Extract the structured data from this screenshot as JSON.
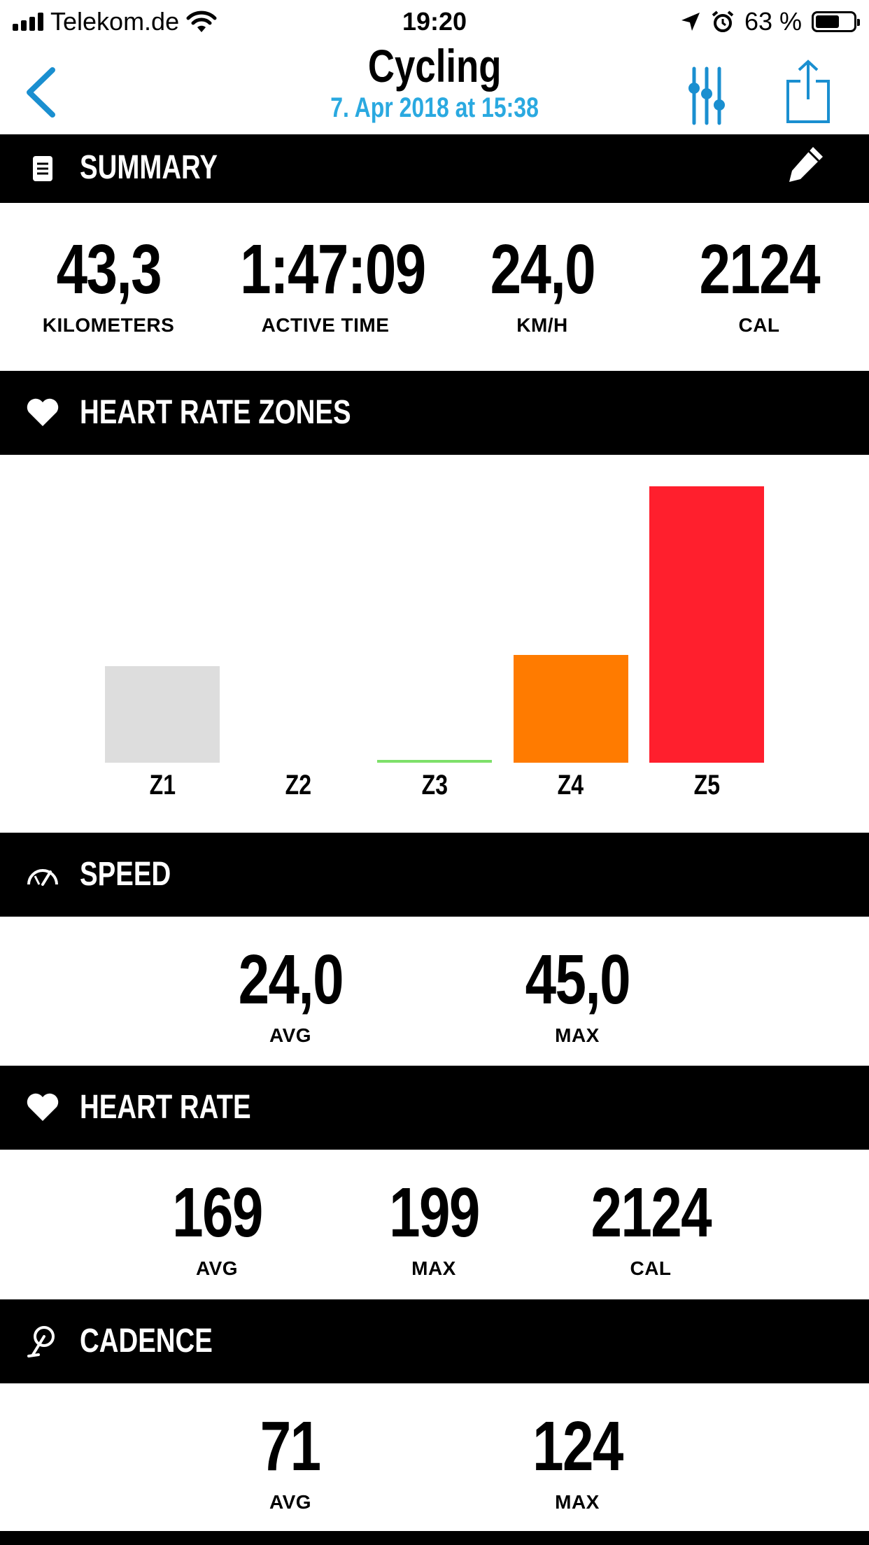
{
  "status_bar": {
    "carrier": "Telekom.de",
    "time": "19:20",
    "battery_percent": "63 %",
    "battery_level": 0.63
  },
  "nav": {
    "title": "Cycling",
    "subtitle": "7. Apr 2018 at 15:38"
  },
  "summary": {
    "title": "SUMMARY",
    "stats": [
      {
        "value": "43,3",
        "label": "KILOMETERS"
      },
      {
        "value": "1:47:09",
        "label": "ACTIVE TIME"
      },
      {
        "value": "24,0",
        "label": "KM/H"
      },
      {
        "value": "2124",
        "label": "CAL"
      }
    ]
  },
  "heart_rate_zones": {
    "title": "HEART RATE ZONES"
  },
  "chart_data": {
    "type": "bar",
    "categories": [
      "Z1",
      "Z2",
      "Z3",
      "Z4",
      "Z5"
    ],
    "values": [
      0.35,
      0,
      0.01,
      0.39,
      1.0
    ],
    "colors": [
      "#dddddd",
      "#cccccc",
      "#7ee06a",
      "#ff7b00",
      "#ff1f2d"
    ],
    "title": "",
    "xlabel": "",
    "ylabel": "",
    "ylim": [
      0,
      1
    ]
  },
  "speed": {
    "title": "SPEED",
    "stats": [
      {
        "value": "24,0",
        "label": "AVG"
      },
      {
        "value": "45,0",
        "label": "MAX"
      }
    ]
  },
  "heart_rate": {
    "title": "HEART RATE",
    "stats": [
      {
        "value": "169",
        "label": "AVG"
      },
      {
        "value": "199",
        "label": "MAX"
      },
      {
        "value": "2124",
        "label": "CAL"
      }
    ]
  },
  "cadence": {
    "title": "CADENCE",
    "stats": [
      {
        "value": "71",
        "label": "AVG"
      },
      {
        "value": "124",
        "label": "MAX"
      }
    ]
  },
  "icons": {
    "back": "chevron-left-icon",
    "filter": "sliders-icon",
    "share": "share-icon",
    "summary": "document-icon",
    "edit": "pencil-icon",
    "heart": "heart-icon",
    "speed": "speedometer-icon",
    "cadence": "pedal-icon"
  },
  "accent_color": "#2aa9e0"
}
